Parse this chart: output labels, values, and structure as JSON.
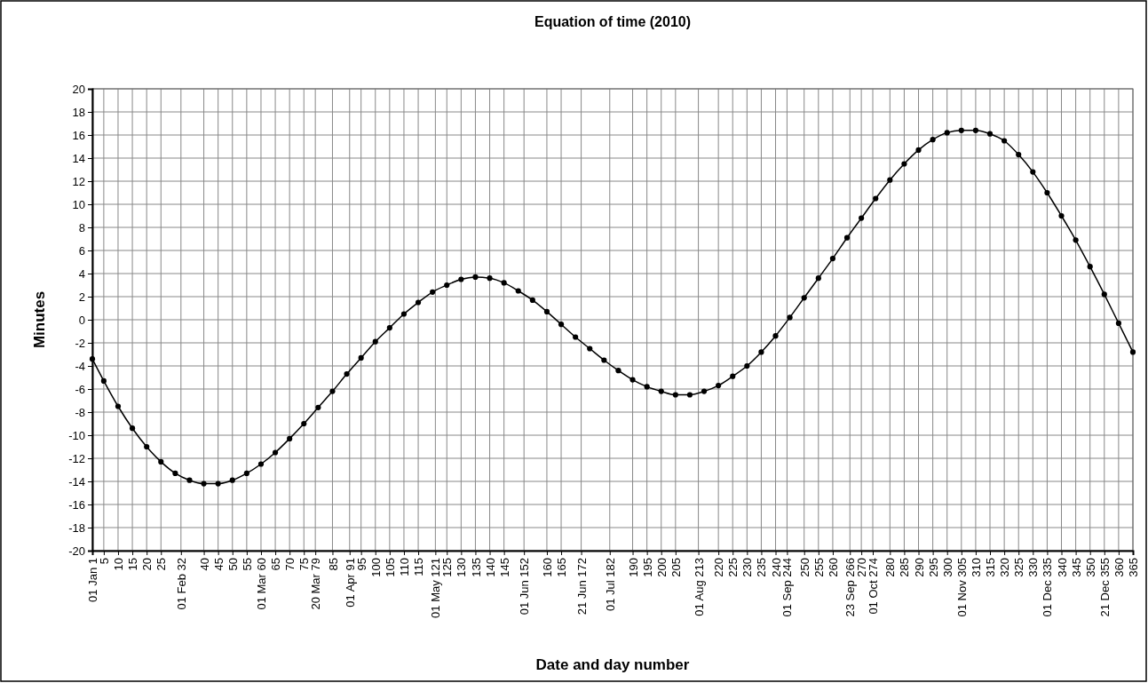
{
  "chart_data": {
    "type": "line",
    "title": "Equation of time (2010)",
    "xlabel": "Date and day number",
    "ylabel": "Minutes",
    "x": [
      1,
      5,
      10,
      15,
      20,
      25,
      30,
      35,
      40,
      45,
      50,
      55,
      60,
      65,
      70,
      75,
      80,
      85,
      90,
      95,
      100,
      105,
      110,
      115,
      120,
      125,
      130,
      135,
      140,
      145,
      150,
      155,
      160,
      165,
      170,
      175,
      180,
      185,
      190,
      195,
      200,
      205,
      210,
      215,
      220,
      225,
      230,
      235,
      240,
      245,
      250,
      255,
      260,
      265,
      270,
      275,
      280,
      285,
      290,
      295,
      300,
      305,
      310,
      315,
      320,
      325,
      330,
      335,
      340,
      345,
      350,
      355,
      360,
      365
    ],
    "series": [
      {
        "color": "#000000",
        "values": [
          -3.4,
          -5.3,
          -7.5,
          -9.4,
          -11.0,
          -12.3,
          -13.3,
          -13.9,
          -14.2,
          -14.2,
          -13.9,
          -13.3,
          -12.5,
          -11.5,
          -10.3,
          -9.0,
          -7.6,
          -6.2,
          -4.7,
          -3.3,
          -1.9,
          -0.7,
          0.5,
          1.5,
          2.4,
          3.0,
          3.5,
          3.7,
          3.6,
          3.2,
          2.5,
          1.7,
          0.7,
          -0.4,
          -1.5,
          -2.5,
          -3.5,
          -4.4,
          -5.2,
          -5.8,
          -6.2,
          -6.5,
          -6.5,
          -6.2,
          -5.7,
          -4.9,
          -4.0,
          -2.8,
          -1.4,
          0.2,
          1.9,
          3.6,
          5.3,
          7.1,
          8.8,
          10.5,
          12.1,
          13.5,
          14.7,
          15.6,
          16.2,
          16.4,
          16.4,
          16.1,
          15.5,
          14.3,
          12.8,
          11.0,
          9.0,
          6.9,
          4.6,
          2.2,
          -0.3,
          -2.8
        ]
      }
    ],
    "xlim": [
      1,
      365
    ],
    "xticks": [
      {
        "value": 1,
        "label": "01 Jan 1"
      },
      5,
      10,
      15,
      20,
      25,
      {
        "value": 32,
        "label": "01 Feb 32"
      },
      40,
      45,
      50,
      55,
      {
        "value": 60,
        "label": "01 Mar 60"
      },
      65,
      70,
      75,
      {
        "value": 79,
        "label": "20 Mar 79"
      },
      85,
      {
        "value": 91,
        "label": "01 Apr 91"
      },
      95,
      100,
      105,
      110,
      115,
      {
        "value": 121,
        "label": "01 May 121"
      },
      125,
      130,
      135,
      140,
      145,
      {
        "value": 152,
        "label": "01 Jun 152"
      },
      160,
      165,
      {
        "value": 172,
        "label": "21 Jun 172"
      },
      {
        "value": 182,
        "label": "01 Jul 182"
      },
      190,
      195,
      200,
      205,
      {
        "value": 213,
        "label": "01 Aug 213"
      },
      220,
      225,
      230,
      235,
      240,
      {
        "value": 244,
        "label": "01 Sep 244"
      },
      250,
      255,
      260,
      {
        "value": 266,
        "label": "23 Sep 266"
      },
      270,
      {
        "value": 274,
        "label": "01 Oct 274"
      },
      280,
      285,
      290,
      295,
      300,
      {
        "value": 305,
        "label": "01 Nov 305"
      },
      310,
      315,
      320,
      325,
      330,
      {
        "value": 335,
        "label": "01 Dec 335"
      },
      340,
      345,
      350,
      {
        "value": 355,
        "label": "21 Dec 355"
      },
      360,
      365
    ],
    "ylim": [
      -20,
      20
    ],
    "yticks": [
      -20,
      -18,
      -16,
      -14,
      -12,
      -10,
      -8,
      -6,
      -4,
      -2,
      0,
      2,
      4,
      6,
      8,
      10,
      12,
      14,
      16,
      18,
      20
    ],
    "grid": true,
    "marker": "circle",
    "line_style": "solid"
  }
}
